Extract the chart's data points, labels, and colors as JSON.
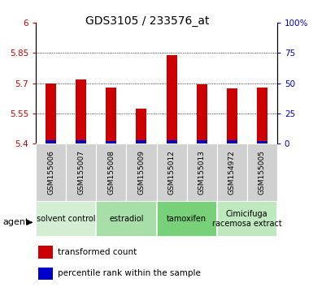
{
  "title": "GDS3105 / 233576_at",
  "samples": [
    "GSM155006",
    "GSM155007",
    "GSM155008",
    "GSM155009",
    "GSM155012",
    "GSM155013",
    "GSM154972",
    "GSM155005"
  ],
  "red_values": [
    5.7,
    5.72,
    5.68,
    5.575,
    5.84,
    5.695,
    5.675,
    5.68
  ],
  "blue_values": [
    5.415,
    5.418,
    5.412,
    5.415,
    5.418,
    5.415,
    5.415,
    5.413
  ],
  "bar_base": 5.4,
  "ylim_left": [
    5.4,
    6.0
  ],
  "ylim_right": [
    0,
    100
  ],
  "yticks_left": [
    5.4,
    5.55,
    5.7,
    5.85,
    6.0
  ],
  "yticks_right": [
    0,
    25,
    50,
    75,
    100
  ],
  "ytick_labels_left": [
    "5.4",
    "5.55",
    "5.7",
    "5.85",
    "6"
  ],
  "ytick_labels_right": [
    "0",
    "25",
    "50",
    "75",
    "100%"
  ],
  "hlines": [
    5.55,
    5.7,
    5.85
  ],
  "red_color": "#cc0000",
  "blue_color": "#0000cc",
  "agent_groups": [
    {
      "label": "solvent control",
      "start": 0,
      "end": 2,
      "color": "#d4eed4"
    },
    {
      "label": "estradiol",
      "start": 2,
      "end": 4,
      "color": "#a8dea8"
    },
    {
      "label": "tamoxifen",
      "start": 4,
      "end": 6,
      "color": "#78d078"
    },
    {
      "label": "Cimicifuga\nracemosa extract",
      "start": 6,
      "end": 8,
      "color": "#c0e8c0"
    }
  ],
  "legend_red": "transformed count",
  "legend_blue": "percentile rank within the sample",
  "bar_width": 0.35,
  "bg_plot": "#ffffff",
  "sample_bg": "#d0d0d0",
  "title_fontsize": 10,
  "tick_fontsize": 7.5,
  "label_fontsize": 6.5,
  "agent_fontsize": 7,
  "legend_fontsize": 7.5
}
